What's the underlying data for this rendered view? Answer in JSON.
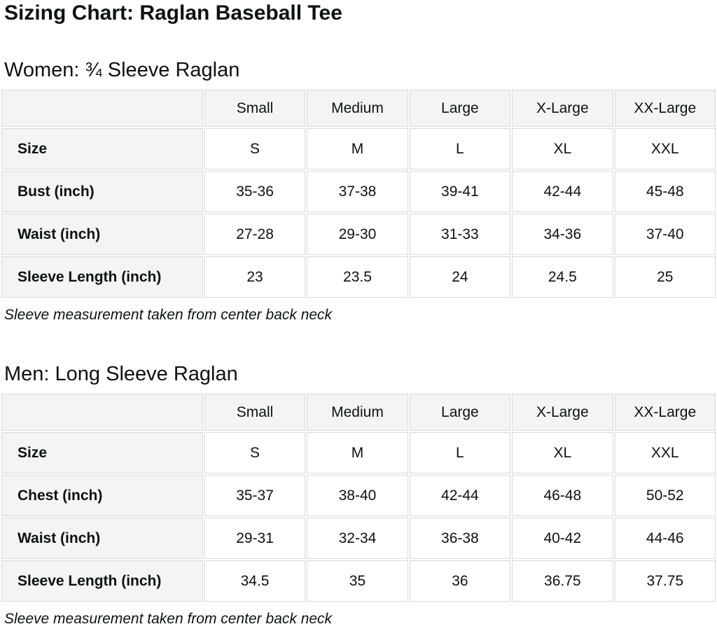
{
  "page": {
    "title": "Sizing Chart: Raglan Baseball Tee"
  },
  "colors": {
    "text": "#0f1111",
    "header_cell_bg": "#f4f4f4",
    "cell_bg": "#ffffff",
    "border": "#d8d8d8"
  },
  "women": {
    "heading": "Women: ¾ Sleeve Raglan",
    "note": "Sleeve measurement taken from center back neck",
    "table": {
      "column_headers": [
        "",
        "Small",
        "Medium",
        "Large",
        "X-Large",
        "XX-Large"
      ],
      "rows": [
        {
          "label": "Size",
          "values": [
            "S",
            "M",
            "L",
            "XL",
            "XXL"
          ]
        },
        {
          "label": "Bust (inch)",
          "values": [
            "35-36",
            "37-38",
            "39-41",
            "42-44",
            "45-48"
          ]
        },
        {
          "label": "Waist (inch)",
          "values": [
            "27-28",
            "29-30",
            "31-33",
            "34-36",
            "37-40"
          ]
        },
        {
          "label": "Sleeve Length (inch)",
          "values": [
            "23",
            "23.5",
            "24",
            "24.5",
            "25"
          ]
        }
      ]
    }
  },
  "men": {
    "heading": "Men: Long Sleeve Raglan",
    "note": "Sleeve measurement taken from center back neck",
    "table": {
      "column_headers": [
        "",
        "Small",
        "Medium",
        "Large",
        "X-Large",
        "XX-Large"
      ],
      "rows": [
        {
          "label": "Size",
          "values": [
            "S",
            "M",
            "L",
            "XL",
            "XXL"
          ]
        },
        {
          "label": "Chest (inch)",
          "values": [
            "35-37",
            "38-40",
            "42-44",
            "46-48",
            "50-52"
          ]
        },
        {
          "label": "Waist (inch)",
          "values": [
            "29-31",
            "32-34",
            "36-38",
            "40-42",
            "44-46"
          ]
        },
        {
          "label": "Sleeve Length (inch)",
          "values": [
            "34.5",
            "35",
            "36",
            "36.75",
            "37.75"
          ]
        }
      ]
    }
  }
}
